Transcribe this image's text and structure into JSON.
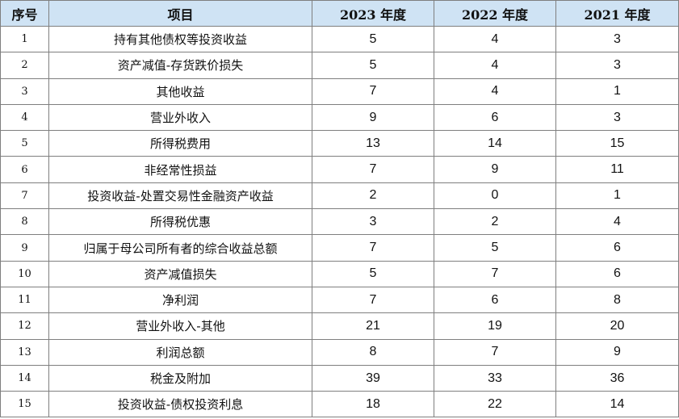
{
  "table": {
    "headers": [
      "序号",
      "项目",
      "2023 年度",
      "2022 年度",
      "2021 年度"
    ],
    "rows": [
      [
        "1",
        "持有其他债权等投资收益",
        "5",
        "4",
        "3"
      ],
      [
        "2",
        "资产减值-存货跌价损失",
        "5",
        "4",
        "3"
      ],
      [
        "3",
        "其他收益",
        "7",
        "4",
        "1"
      ],
      [
        "4",
        "营业外收入",
        "9",
        "6",
        "3"
      ],
      [
        "5",
        "所得税费用",
        "13",
        "14",
        "15"
      ],
      [
        "6",
        "非经常性损益",
        "7",
        "9",
        "11"
      ],
      [
        "7",
        "投资收益-处置交易性金融资产收益",
        "2",
        "0",
        "1"
      ],
      [
        "8",
        "所得税优惠",
        "3",
        "2",
        "4"
      ],
      [
        "9",
        "归属于母公司所有者的综合收益总额",
        "7",
        "5",
        "6"
      ],
      [
        "10",
        "资产减值损失",
        "5",
        "7",
        "6"
      ],
      [
        "11",
        "净利润",
        "7",
        "6",
        "8"
      ],
      [
        "12",
        "营业外收入-其他",
        "21",
        "19",
        "20"
      ],
      [
        "13",
        "利润总额",
        "8",
        "7",
        "9"
      ],
      [
        "14",
        "税金及附加",
        "39",
        "33",
        "36"
      ],
      [
        "15",
        "投资收益-债权投资利息",
        "18",
        "22",
        "14"
      ]
    ]
  },
  "colors": {
    "header_background": "#cfe3f4",
    "border": "#7f7f7f",
    "text": "#111111"
  }
}
